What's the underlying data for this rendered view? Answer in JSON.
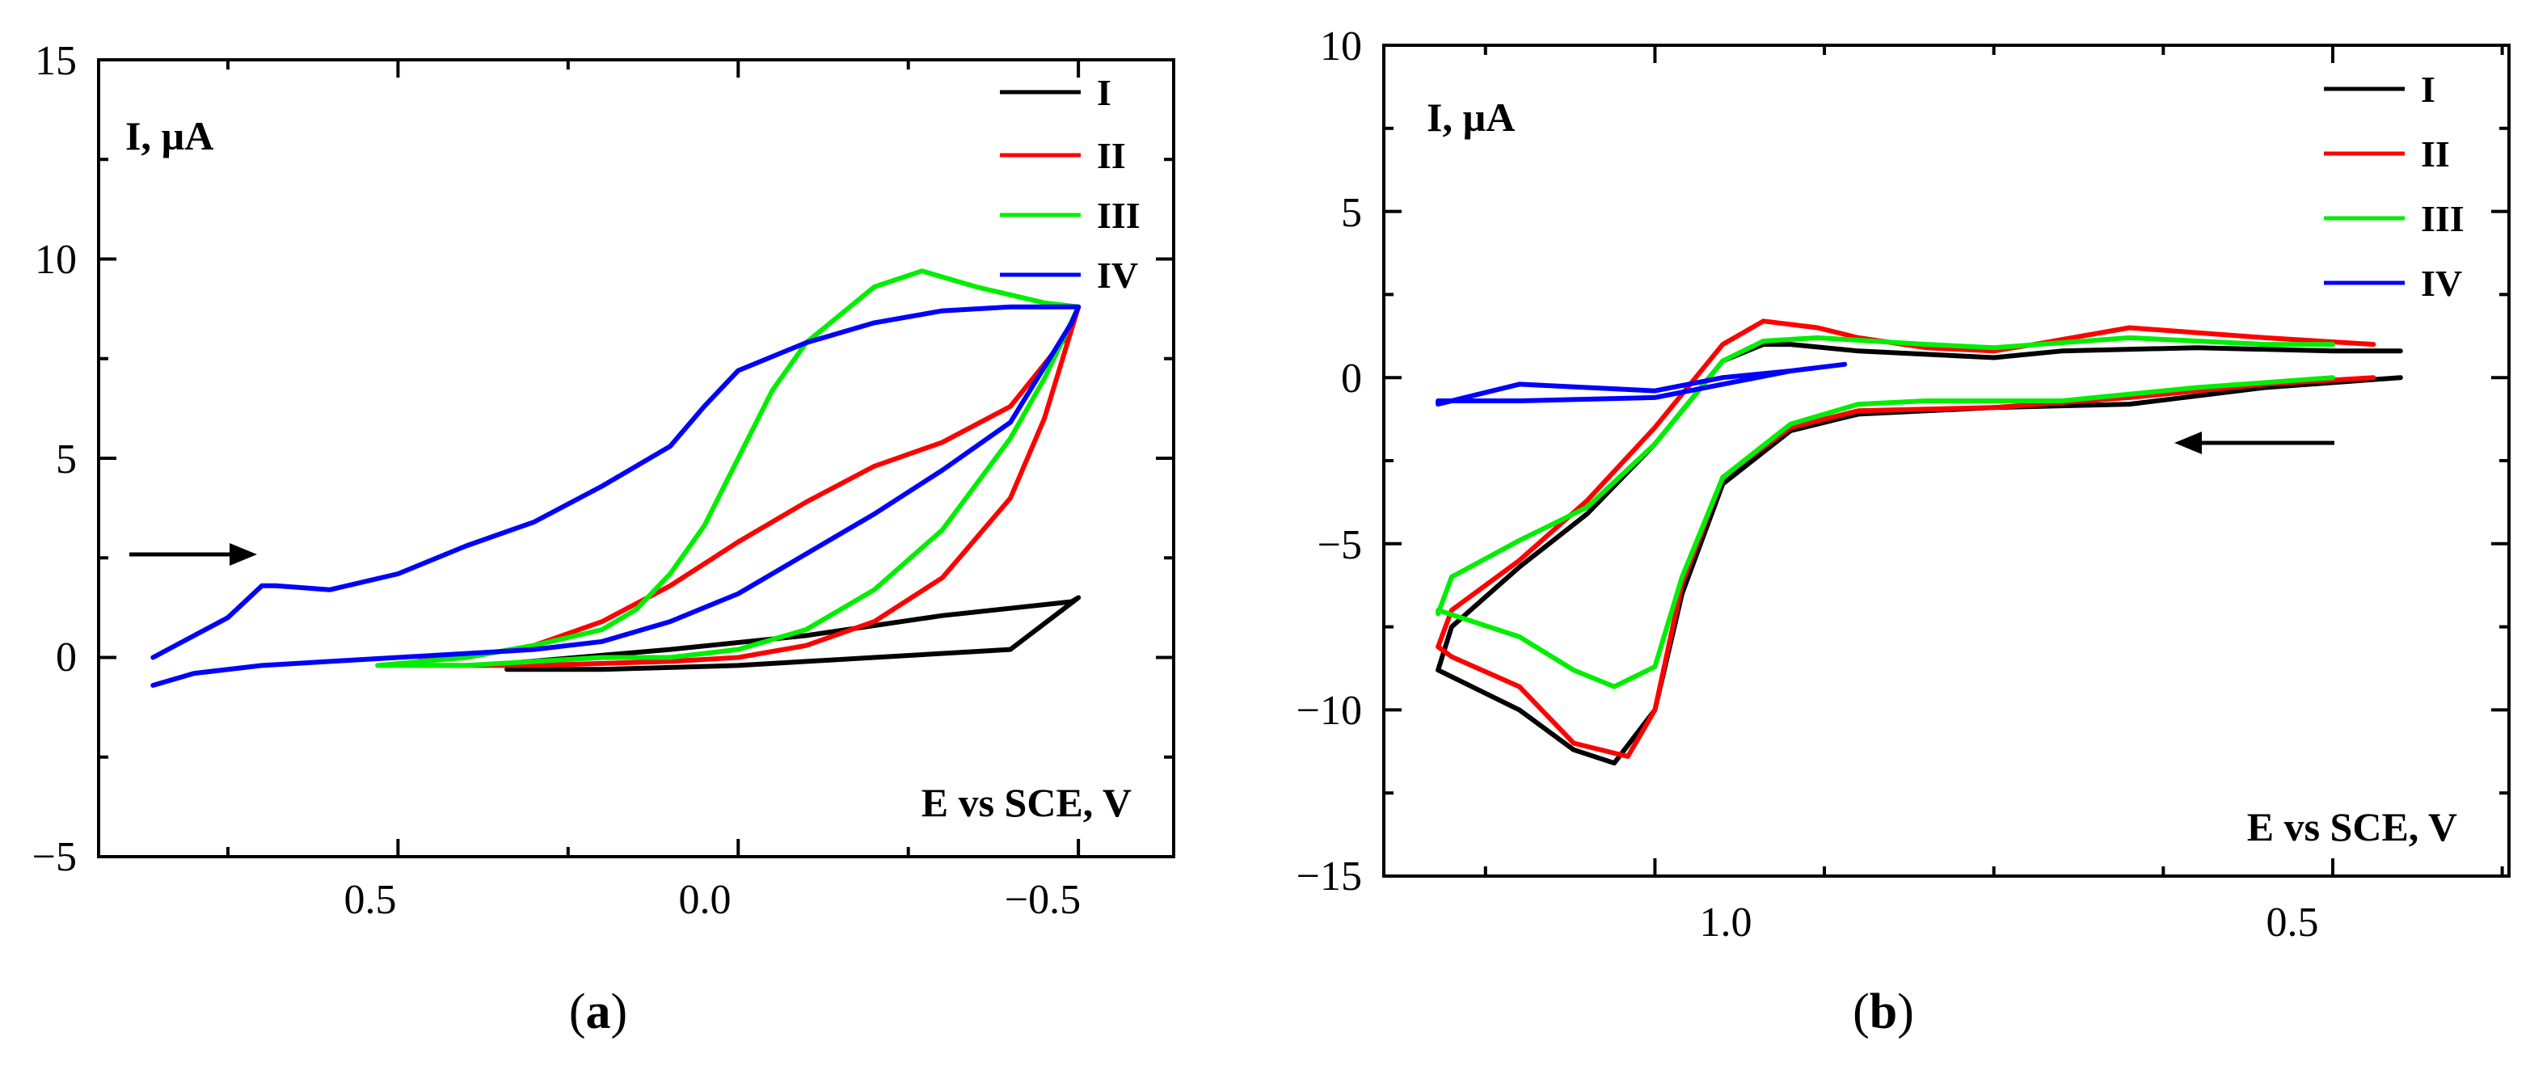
{
  "chart_data": [
    {
      "type": "line",
      "caption_letter": "a",
      "ylabel": "I, µA",
      "xlabel": "E vs SCE, V",
      "xlim": [
        0.94,
        -0.64
      ],
      "ylim": [
        -5,
        15
      ],
      "x_ticks": [
        0.5,
        0.0,
        -0.5
      ],
      "x_tick_labels": [
        "0.5",
        "0.0",
        "−0.5"
      ],
      "y_ticks": [
        -5,
        0,
        5,
        10,
        15
      ],
      "y_tick_labels": [
        "−5",
        "0",
        "5",
        "10",
        "15"
      ],
      "legend_position": "top-right",
      "arrow_direction": "right",
      "series": [
        {
          "name": "I",
          "color": "#000000",
          "x": [
            0.34,
            0.2,
            0.0,
            -0.2,
            -0.4,
            -0.5,
            -0.49,
            -0.3,
            -0.1,
            0.1,
            0.34
          ],
          "y": [
            -0.3,
            -0.3,
            -0.2,
            0.0,
            0.2,
            1.5,
            1.4,
            1.05,
            0.55,
            0.2,
            -0.15
          ]
        },
        {
          "name": "II",
          "color": "#ff0000",
          "x": [
            0.47,
            0.3,
            0.1,
            0.0,
            -0.1,
            -0.2,
            -0.3,
            -0.4,
            -0.45,
            -0.5,
            -0.48,
            -0.4,
            -0.3,
            -0.2,
            -0.1,
            0.0,
            0.1,
            0.2,
            0.3,
            0.4,
            0.47
          ],
          "y": [
            -0.2,
            -0.2,
            -0.1,
            0.0,
            0.3,
            0.9,
            2.0,
            4.0,
            6.0,
            8.8,
            8.0,
            6.3,
            5.4,
            4.8,
            3.9,
            2.9,
            1.8,
            0.9,
            0.3,
            0.0,
            -0.1
          ]
        },
        {
          "name": "III",
          "color": "#00ee00",
          "x": [
            0.53,
            0.4,
            0.2,
            0.1,
            0.0,
            -0.1,
            -0.2,
            -0.3,
            -0.4,
            -0.45,
            -0.5,
            -0.45,
            -0.35,
            -0.27,
            -0.2,
            -0.1,
            -0.05,
            0.0,
            0.05,
            0.1,
            0.15,
            0.2,
            0.3,
            0.4,
            0.53
          ],
          "y": [
            -0.2,
            -0.2,
            0.0,
            0.0,
            0.2,
            0.7,
            1.7,
            3.2,
            5.5,
            7.0,
            8.8,
            8.9,
            9.3,
            9.7,
            9.3,
            7.9,
            6.7,
            5.0,
            3.3,
            2.1,
            1.2,
            0.7,
            0.3,
            0.0,
            -0.2
          ]
        },
        {
          "name": "IV",
          "color": "#0000ff",
          "x": [
            0.86,
            0.75,
            0.7,
            0.68,
            0.6,
            0.5,
            0.4,
            0.3,
            0.2,
            0.1,
            0.05,
            0.0,
            -0.1,
            -0.2,
            -0.3,
            -0.4,
            -0.5,
            -0.49,
            -0.4,
            -0.3,
            -0.2,
            -0.1,
            0.0,
            0.1,
            0.2,
            0.3,
            0.4,
            0.5,
            0.6,
            0.7,
            0.8,
            0.86
          ],
          "y": [
            0.0,
            1.0,
            1.8,
            1.8,
            1.7,
            2.1,
            2.8,
            3.4,
            4.3,
            5.3,
            6.3,
            7.2,
            7.9,
            8.4,
            8.7,
            8.8,
            8.8,
            8.4,
            5.9,
            4.7,
            3.6,
            2.6,
            1.6,
            0.9,
            0.4,
            0.2,
            0.1,
            0.0,
            -0.1,
            -0.2,
            -0.4,
            -0.7
          ]
        }
      ]
    },
    {
      "type": "line",
      "caption_letter": "b",
      "ylabel": "I, µA",
      "xlabel": "E vs SCE, V",
      "xlim": [
        1.2,
        0.37
      ],
      "ylim": [
        -15,
        10
      ],
      "x_ticks": [
        1.0,
        0.5
      ],
      "x_tick_labels": [
        "1.0",
        "0.5"
      ],
      "y_ticks": [
        -15,
        -10,
        -5,
        0,
        5,
        10
      ],
      "y_tick_labels": [
        "−15",
        "−10",
        "−5",
        "0",
        "5",
        "10"
      ],
      "legend_position": "top-right",
      "arrow_direction": "left",
      "series": [
        {
          "name": "I",
          "color": "#000000",
          "x": [
            0.45,
            0.55,
            0.65,
            0.75,
            0.85,
            0.9,
            0.95,
            0.98,
            1.0,
            1.03,
            1.06,
            1.1,
            1.15,
            1.16,
            1.15,
            1.1,
            1.05,
            1.0,
            0.95,
            0.92,
            0.9,
            0.85,
            0.8,
            0.75,
            0.7,
            0.6,
            0.5,
            0.45
          ],
          "y": [
            0.0,
            -0.3,
            -0.8,
            -0.9,
            -1.1,
            -1.6,
            -3.2,
            -6.5,
            -10.0,
            -11.6,
            -11.2,
            -10.0,
            -9.0,
            -8.8,
            -7.5,
            -5.7,
            -4.1,
            -2.0,
            0.5,
            1.0,
            1.0,
            0.8,
            0.7,
            0.6,
            0.8,
            0.9,
            0.8,
            0.8
          ]
        },
        {
          "name": "II",
          "color": "#ff0000",
          "x": [
            0.47,
            0.55,
            0.65,
            0.75,
            0.85,
            0.9,
            0.95,
            0.98,
            1.0,
            1.02,
            1.06,
            1.1,
            1.15,
            1.16,
            1.15,
            1.1,
            1.05,
            1.0,
            0.95,
            0.92,
            0.88,
            0.85,
            0.8,
            0.75,
            0.72,
            0.65,
            0.55,
            0.47
          ],
          "y": [
            0.0,
            -0.2,
            -0.6,
            -0.9,
            -1.0,
            -1.5,
            -3.0,
            -6.2,
            -10.0,
            -11.4,
            -11.0,
            -9.3,
            -8.4,
            -8.1,
            -7.0,
            -5.5,
            -3.7,
            -1.5,
            1.0,
            1.7,
            1.5,
            1.2,
            0.9,
            0.8,
            1.0,
            1.5,
            1.2,
            1.0
          ]
        },
        {
          "name": "III",
          "color": "#00ee00",
          "x": [
            0.5,
            0.6,
            0.7,
            0.8,
            0.85,
            0.9,
            0.95,
            0.98,
            1.0,
            1.03,
            1.06,
            1.1,
            1.16,
            1.16,
            1.15,
            1.1,
            1.05,
            1.0,
            0.95,
            0.92,
            0.88,
            0.8,
            0.75,
            0.65,
            0.55,
            0.5
          ],
          "y": [
            0.0,
            -0.3,
            -0.7,
            -0.7,
            -0.8,
            -1.4,
            -3.0,
            -6.0,
            -8.7,
            -9.3,
            -8.8,
            -7.8,
            -7.0,
            -7.1,
            -6.0,
            -4.9,
            -3.9,
            -2.0,
            0.5,
            1.1,
            1.2,
            1.0,
            0.9,
            1.2,
            1.0,
            1.0
          ]
        },
        {
          "name": "IV",
          "color": "#0000ff",
          "x": [
            0.86,
            0.9,
            1.0,
            1.1,
            1.16,
            1.16,
            1.1,
            1.0,
            0.95,
            0.9,
            0.86
          ],
          "y": [
            0.4,
            0.2,
            -0.6,
            -0.7,
            -0.7,
            -0.8,
            -0.2,
            -0.4,
            0.0,
            0.2,
            0.4
          ]
        }
      ]
    }
  ]
}
